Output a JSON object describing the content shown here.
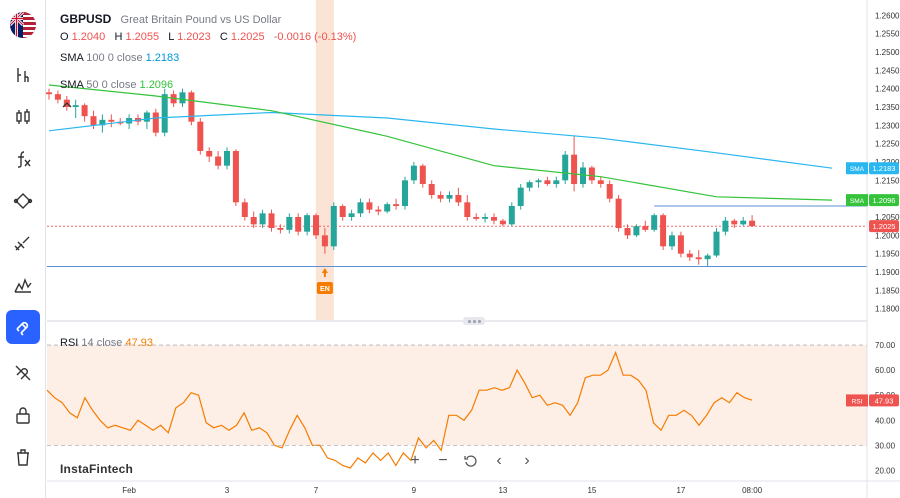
{
  "symbol": "GBPUSD",
  "description": "Great Britain Pound vs US Dollar",
  "ohlc": {
    "o_label": "O",
    "o": "1.2040",
    "h_label": "H",
    "h": "1.2055",
    "l_label": "L",
    "l": "1.2023",
    "c_label": "C",
    "c": "1.2025",
    "change": "-0.0016 (-0.13%)"
  },
  "indicators": {
    "sma100": {
      "name": "SMA",
      "params": "100 0 close",
      "value": "1.2183",
      "tag": "SMA",
      "tag_value": "1.2183"
    },
    "sma50": {
      "name": "SMA",
      "params": "50 0 close",
      "value": "1.2096",
      "tag": "SMA",
      "tag_value": "1.2096"
    },
    "rsi": {
      "name": "RSI",
      "params": "14 close",
      "value": "47.93",
      "tag": "RSI",
      "tag_value": "47.93"
    }
  },
  "price_tag": "1.2025",
  "event_marker": "EN",
  "brand": "InstaFintech",
  "colors": {
    "up": "#26a69a",
    "down": "#ef5350",
    "sma100": "#2ab7f0",
    "sma50": "#34c33b",
    "rsi": "#f57c00",
    "active_tool": "#2962ff"
  },
  "toolbar": [
    "flag-icon",
    "candles-icon",
    "bars-icon",
    "function-icon",
    "trendline-icon",
    "brush-icon",
    "pattern-icon",
    "magnet-icon",
    "hide-drawings-icon",
    "lock-icon",
    "delete-icon"
  ],
  "zoom_controls": [
    "zoom-in-icon",
    "zoom-out-icon",
    "reset-icon",
    "scroll-left-icon",
    "scroll-right-icon"
  ],
  "chart_data": [
    {
      "type": "candlestick",
      "title": "GBPUSD",
      "x_ticks": [
        "Feb",
        "3",
        "7",
        "9",
        "13",
        "15",
        "17",
        "08:00"
      ],
      "y_ticks": [
        "1.2600",
        "1.2550",
        "1.2500",
        "1.2450",
        "1.2400",
        "1.2350",
        "1.2300",
        "1.2250",
        "1.2200",
        "1.2150",
        "1.2100",
        "1.2050",
        "1.2000",
        "1.1950",
        "1.1900",
        "1.1850",
        "1.1800"
      ],
      "ylim": [
        1.178,
        1.262
      ],
      "candles": [
        [
          1.239,
          1.24,
          1.237,
          1.2385
        ],
        [
          1.2385,
          1.2395,
          1.236,
          1.237
        ],
        [
          1.237,
          1.238,
          1.234,
          1.235
        ],
        [
          1.235,
          1.237,
          1.232,
          1.2355
        ],
        [
          1.2355,
          1.236,
          1.231,
          1.2325
        ],
        [
          1.2325,
          1.234,
          1.229,
          1.23
        ],
        [
          1.23,
          1.233,
          1.228,
          1.2315
        ],
        [
          1.2315,
          1.233,
          1.2295,
          1.231
        ],
        [
          1.231,
          1.232,
          1.23,
          1.2305
        ],
        [
          1.2305,
          1.233,
          1.229,
          1.232
        ],
        [
          1.232,
          1.233,
          1.23,
          1.231
        ],
        [
          1.231,
          1.234,
          1.229,
          1.2335
        ],
        [
          1.2335,
          1.2345,
          1.227,
          1.228
        ],
        [
          1.228,
          1.24,
          1.227,
          1.2385
        ],
        [
          1.2385,
          1.2395,
          1.235,
          1.236
        ],
        [
          1.236,
          1.24,
          1.235,
          1.239
        ],
        [
          1.239,
          1.2395,
          1.23,
          1.231
        ],
        [
          1.231,
          1.232,
          1.222,
          1.223
        ],
        [
          1.223,
          1.224,
          1.22,
          1.2215
        ],
        [
          1.2215,
          1.223,
          1.218,
          1.219
        ],
        [
          1.219,
          1.224,
          1.218,
          1.223
        ],
        [
          1.223,
          1.2235,
          1.208,
          1.209
        ],
        [
          1.209,
          1.21,
          1.204,
          1.205
        ],
        [
          1.205,
          1.2065,
          1.202,
          1.203
        ],
        [
          1.203,
          1.207,
          1.202,
          1.206
        ],
        [
          1.206,
          1.207,
          1.201,
          1.202
        ],
        [
          1.202,
          1.203,
          1.2005,
          1.2015
        ],
        [
          1.2015,
          1.206,
          1.2005,
          1.205
        ],
        [
          1.205,
          1.206,
          1.2,
          1.201
        ],
        [
          1.201,
          1.206,
          1.2,
          1.2055
        ],
        [
          1.2055,
          1.206,
          1.199,
          1.2
        ],
        [
          1.2,
          1.202,
          1.195,
          1.197
        ],
        [
          1.197,
          1.209,
          1.196,
          1.208
        ],
        [
          1.208,
          1.2085,
          1.204,
          1.205
        ],
        [
          1.205,
          1.207,
          1.204,
          1.206
        ],
        [
          1.206,
          1.21,
          1.205,
          1.209
        ],
        [
          1.209,
          1.21,
          1.206,
          1.207
        ],
        [
          1.207,
          1.208,
          1.2055,
          1.2065
        ],
        [
          1.2065,
          1.209,
          1.206,
          1.2085
        ],
        [
          1.2085,
          1.21,
          1.207,
          1.208
        ],
        [
          1.208,
          1.216,
          1.207,
          1.215
        ],
        [
          1.215,
          1.22,
          1.214,
          1.219
        ],
        [
          1.219,
          1.2195,
          1.213,
          1.214
        ],
        [
          1.214,
          1.215,
          1.21,
          1.211
        ],
        [
          1.211,
          1.212,
          1.209,
          1.21
        ],
        [
          1.21,
          1.212,
          1.209,
          1.211
        ],
        [
          1.211,
          1.213,
          1.208,
          1.209
        ],
        [
          1.209,
          1.211,
          1.204,
          1.205
        ],
        [
          1.205,
          1.206,
          1.204,
          1.2045
        ],
        [
          1.2045,
          1.206,
          1.2035,
          1.205
        ],
        [
          1.205,
          1.206,
          1.203,
          1.204
        ],
        [
          1.204,
          1.2045,
          1.2025,
          1.203
        ],
        [
          1.203,
          1.209,
          1.2025,
          1.208
        ],
        [
          1.208,
          1.214,
          1.207,
          1.213
        ],
        [
          1.213,
          1.215,
          1.212,
          1.2145
        ],
        [
          1.2145,
          1.2155,
          1.213,
          1.215
        ],
        [
          1.215,
          1.216,
          1.2135,
          1.214
        ],
        [
          1.214,
          1.216,
          1.213,
          1.215
        ],
        [
          1.215,
          1.223,
          1.214,
          1.222
        ],
        [
          1.222,
          1.227,
          1.212,
          1.214
        ],
        [
          1.214,
          1.22,
          1.213,
          1.2185
        ],
        [
          1.2185,
          1.219,
          1.214,
          1.215
        ],
        [
          1.215,
          1.216,
          1.213,
          1.214
        ],
        [
          1.214,
          1.215,
          1.209,
          1.21
        ],
        [
          1.21,
          1.211,
          1.201,
          1.202
        ],
        [
          1.202,
          1.203,
          1.199,
          1.2
        ],
        [
          1.2,
          1.203,
          1.1995,
          1.2025
        ],
        [
          1.2025,
          1.204,
          1.201,
          1.2015
        ],
        [
          1.2015,
          1.206,
          1.201,
          1.2055
        ],
        [
          1.2055,
          1.206,
          1.196,
          1.197
        ],
        [
          1.197,
          1.201,
          1.196,
          1.2
        ],
        [
          1.2,
          1.201,
          1.194,
          1.195
        ],
        [
          1.195,
          1.196,
          1.193,
          1.194
        ],
        [
          1.194,
          1.196,
          1.192,
          1.1935
        ],
        [
          1.1935,
          1.195,
          1.1915,
          1.1945
        ],
        [
          1.1945,
          1.202,
          1.194,
          1.201
        ],
        [
          1.201,
          1.205,
          1.2,
          1.204
        ],
        [
          1.204,
          1.2045,
          1.202,
          1.203
        ],
        [
          1.203,
          1.205,
          1.2025,
          1.204
        ],
        [
          1.204,
          1.2055,
          1.2023,
          1.2025
        ]
      ],
      "sma100": [
        [
          0,
          1.2285
        ],
        [
          12,
          1.232
        ],
        [
          25,
          1.2335
        ],
        [
          38,
          1.232
        ],
        [
          50,
          1.229
        ],
        [
          62,
          1.2265
        ],
        [
          75,
          1.2225
        ],
        [
          88,
          1.2183
        ]
      ],
      "sma50": [
        [
          0,
          1.241
        ],
        [
          12,
          1.238
        ],
        [
          25,
          1.234
        ],
        [
          38,
          1.227
        ],
        [
          50,
          1.219
        ],
        [
          62,
          1.216
        ],
        [
          75,
          1.2105
        ],
        [
          88,
          1.2096
        ]
      ],
      "horizontal_levels": [
        1.208,
        1.2025,
        1.1915
      ],
      "event_index": 31
    },
    {
      "type": "line",
      "title": "RSI",
      "y_ticks": [
        "70.00",
        "60.00",
        "50.00",
        "40.00",
        "30.00",
        "20.00"
      ],
      "ylim": [
        17,
        76
      ],
      "levels": [
        70,
        30
      ],
      "values": [
        52,
        49,
        47,
        43,
        41,
        49,
        44,
        40,
        37,
        38,
        37,
        36,
        40,
        38,
        36,
        38,
        35,
        45,
        47,
        51,
        50,
        39,
        37,
        38,
        36,
        38,
        43,
        36,
        37,
        35,
        30,
        29,
        36,
        42,
        37,
        30,
        30,
        25,
        24,
        22,
        21,
        25,
        23,
        27,
        24,
        27,
        22,
        27,
        24,
        33,
        29,
        32,
        28,
        42,
        42,
        40,
        44,
        52,
        52,
        53,
        52,
        53,
        60,
        55,
        49,
        50,
        46,
        47,
        46,
        42,
        47,
        57,
        58,
        58,
        60,
        67,
        58,
        58,
        56,
        52,
        39,
        36,
        42,
        42,
        44,
        42,
        38,
        42,
        47,
        49,
        47,
        51,
        49,
        48
      ]
    }
  ]
}
